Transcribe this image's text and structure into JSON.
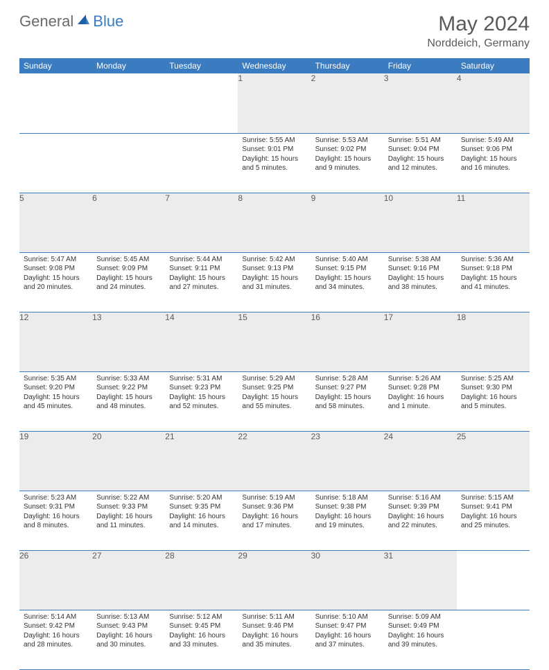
{
  "logo": {
    "general": "General",
    "blue": "Blue"
  },
  "title": "May 2024",
  "location": "Norddeich, Germany",
  "colors": {
    "header_bg": "#3b7bbf",
    "header_text": "#ffffff",
    "daynum_bg": "#ececec",
    "border": "#3b7bbf",
    "title_color": "#5a5a5a"
  },
  "weekdays": [
    "Sunday",
    "Monday",
    "Tuesday",
    "Wednesday",
    "Thursday",
    "Friday",
    "Saturday"
  ],
  "weeks": [
    {
      "nums": [
        "",
        "",
        "",
        "1",
        "2",
        "3",
        "4"
      ],
      "cells": [
        null,
        null,
        null,
        {
          "sunrise": "Sunrise: 5:55 AM",
          "sunset": "Sunset: 9:01 PM",
          "day1": "Daylight: 15 hours",
          "day2": "and 5 minutes."
        },
        {
          "sunrise": "Sunrise: 5:53 AM",
          "sunset": "Sunset: 9:02 PM",
          "day1": "Daylight: 15 hours",
          "day2": "and 9 minutes."
        },
        {
          "sunrise": "Sunrise: 5:51 AM",
          "sunset": "Sunset: 9:04 PM",
          "day1": "Daylight: 15 hours",
          "day2": "and 12 minutes."
        },
        {
          "sunrise": "Sunrise: 5:49 AM",
          "sunset": "Sunset: 9:06 PM",
          "day1": "Daylight: 15 hours",
          "day2": "and 16 minutes."
        }
      ]
    },
    {
      "nums": [
        "5",
        "6",
        "7",
        "8",
        "9",
        "10",
        "11"
      ],
      "cells": [
        {
          "sunrise": "Sunrise: 5:47 AM",
          "sunset": "Sunset: 9:08 PM",
          "day1": "Daylight: 15 hours",
          "day2": "and 20 minutes."
        },
        {
          "sunrise": "Sunrise: 5:45 AM",
          "sunset": "Sunset: 9:09 PM",
          "day1": "Daylight: 15 hours",
          "day2": "and 24 minutes."
        },
        {
          "sunrise": "Sunrise: 5:44 AM",
          "sunset": "Sunset: 9:11 PM",
          "day1": "Daylight: 15 hours",
          "day2": "and 27 minutes."
        },
        {
          "sunrise": "Sunrise: 5:42 AM",
          "sunset": "Sunset: 9:13 PM",
          "day1": "Daylight: 15 hours",
          "day2": "and 31 minutes."
        },
        {
          "sunrise": "Sunrise: 5:40 AM",
          "sunset": "Sunset: 9:15 PM",
          "day1": "Daylight: 15 hours",
          "day2": "and 34 minutes."
        },
        {
          "sunrise": "Sunrise: 5:38 AM",
          "sunset": "Sunset: 9:16 PM",
          "day1": "Daylight: 15 hours",
          "day2": "and 38 minutes."
        },
        {
          "sunrise": "Sunrise: 5:36 AM",
          "sunset": "Sunset: 9:18 PM",
          "day1": "Daylight: 15 hours",
          "day2": "and 41 minutes."
        }
      ]
    },
    {
      "nums": [
        "12",
        "13",
        "14",
        "15",
        "16",
        "17",
        "18"
      ],
      "cells": [
        {
          "sunrise": "Sunrise: 5:35 AM",
          "sunset": "Sunset: 9:20 PM",
          "day1": "Daylight: 15 hours",
          "day2": "and 45 minutes."
        },
        {
          "sunrise": "Sunrise: 5:33 AM",
          "sunset": "Sunset: 9:22 PM",
          "day1": "Daylight: 15 hours",
          "day2": "and 48 minutes."
        },
        {
          "sunrise": "Sunrise: 5:31 AM",
          "sunset": "Sunset: 9:23 PM",
          "day1": "Daylight: 15 hours",
          "day2": "and 52 minutes."
        },
        {
          "sunrise": "Sunrise: 5:29 AM",
          "sunset": "Sunset: 9:25 PM",
          "day1": "Daylight: 15 hours",
          "day2": "and 55 minutes."
        },
        {
          "sunrise": "Sunrise: 5:28 AM",
          "sunset": "Sunset: 9:27 PM",
          "day1": "Daylight: 15 hours",
          "day2": "and 58 minutes."
        },
        {
          "sunrise": "Sunrise: 5:26 AM",
          "sunset": "Sunset: 9:28 PM",
          "day1": "Daylight: 16 hours",
          "day2": "and 1 minute."
        },
        {
          "sunrise": "Sunrise: 5:25 AM",
          "sunset": "Sunset: 9:30 PM",
          "day1": "Daylight: 16 hours",
          "day2": "and 5 minutes."
        }
      ]
    },
    {
      "nums": [
        "19",
        "20",
        "21",
        "22",
        "23",
        "24",
        "25"
      ],
      "cells": [
        {
          "sunrise": "Sunrise: 5:23 AM",
          "sunset": "Sunset: 9:31 PM",
          "day1": "Daylight: 16 hours",
          "day2": "and 8 minutes."
        },
        {
          "sunrise": "Sunrise: 5:22 AM",
          "sunset": "Sunset: 9:33 PM",
          "day1": "Daylight: 16 hours",
          "day2": "and 11 minutes."
        },
        {
          "sunrise": "Sunrise: 5:20 AM",
          "sunset": "Sunset: 9:35 PM",
          "day1": "Daylight: 16 hours",
          "day2": "and 14 minutes."
        },
        {
          "sunrise": "Sunrise: 5:19 AM",
          "sunset": "Sunset: 9:36 PM",
          "day1": "Daylight: 16 hours",
          "day2": "and 17 minutes."
        },
        {
          "sunrise": "Sunrise: 5:18 AM",
          "sunset": "Sunset: 9:38 PM",
          "day1": "Daylight: 16 hours",
          "day2": "and 19 minutes."
        },
        {
          "sunrise": "Sunrise: 5:16 AM",
          "sunset": "Sunset: 9:39 PM",
          "day1": "Daylight: 16 hours",
          "day2": "and 22 minutes."
        },
        {
          "sunrise": "Sunrise: 5:15 AM",
          "sunset": "Sunset: 9:41 PM",
          "day1": "Daylight: 16 hours",
          "day2": "and 25 minutes."
        }
      ]
    },
    {
      "nums": [
        "26",
        "27",
        "28",
        "29",
        "30",
        "31",
        ""
      ],
      "cells": [
        {
          "sunrise": "Sunrise: 5:14 AM",
          "sunset": "Sunset: 9:42 PM",
          "day1": "Daylight: 16 hours",
          "day2": "and 28 minutes."
        },
        {
          "sunrise": "Sunrise: 5:13 AM",
          "sunset": "Sunset: 9:43 PM",
          "day1": "Daylight: 16 hours",
          "day2": "and 30 minutes."
        },
        {
          "sunrise": "Sunrise: 5:12 AM",
          "sunset": "Sunset: 9:45 PM",
          "day1": "Daylight: 16 hours",
          "day2": "and 33 minutes."
        },
        {
          "sunrise": "Sunrise: 5:11 AM",
          "sunset": "Sunset: 9:46 PM",
          "day1": "Daylight: 16 hours",
          "day2": "and 35 minutes."
        },
        {
          "sunrise": "Sunrise: 5:10 AM",
          "sunset": "Sunset: 9:47 PM",
          "day1": "Daylight: 16 hours",
          "day2": "and 37 minutes."
        },
        {
          "sunrise": "Sunrise: 5:09 AM",
          "sunset": "Sunset: 9:49 PM",
          "day1": "Daylight: 16 hours",
          "day2": "and 39 minutes."
        },
        null
      ]
    }
  ]
}
